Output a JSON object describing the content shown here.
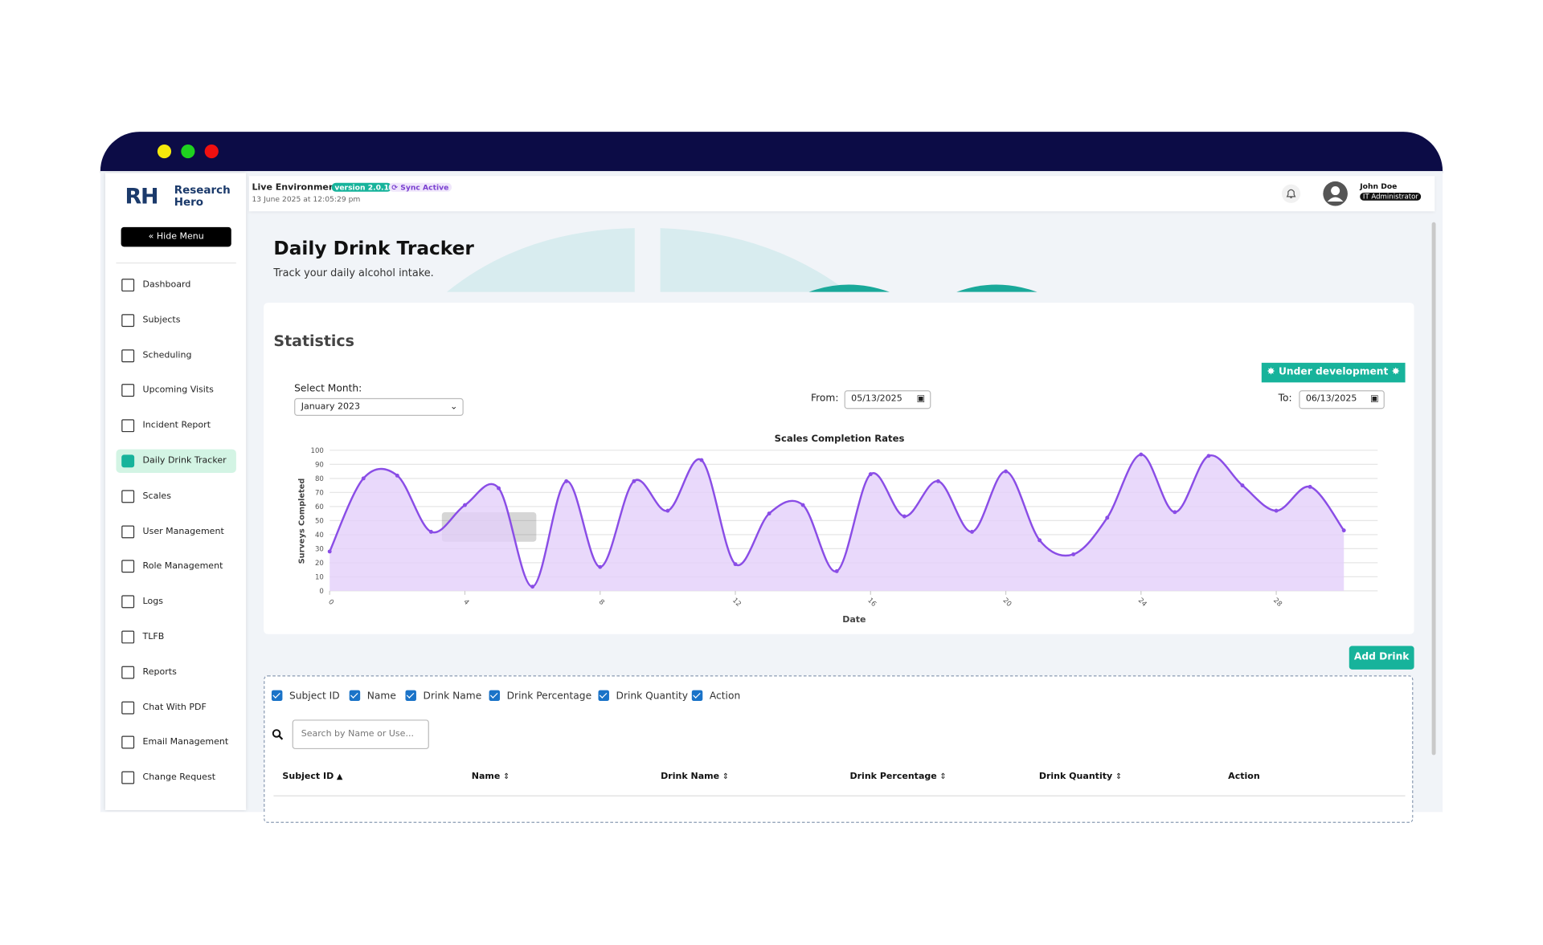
{
  "sidebar": {
    "logo_mark": "RH",
    "logo_lines": [
      "Research",
      "Hero"
    ],
    "hide_menu": "Hide Menu",
    "items": [
      "Dashboard",
      "Subjects",
      "Scheduling",
      "Upcoming Visits",
      "Incident Report",
      "Daily Drink Tracker",
      "Scales",
      "User Management",
      "Role Management",
      "Logs",
      "TLFB",
      "Reports",
      "Chat With PDF",
      "Email Management",
      "Change Request"
    ],
    "active_index": 5
  },
  "header": {
    "environment": "Live Environment",
    "version": "version 2.0.1",
    "sync": "Sync Active",
    "timestamp": "13 June 2025 at 12:05:29 pm",
    "user_name": "John Doe",
    "user_role": "IT Administrator"
  },
  "page": {
    "title": "Daily Drink Tracker",
    "subtitle": "Track your daily alcohol intake."
  },
  "statistics": {
    "title": "Statistics",
    "badge": "Under development",
    "select_label": "Select Month:",
    "select_value": "January 2023",
    "from_label": "From:",
    "from_value": "05/13/2025",
    "to_label": "To:",
    "to_value": "06/13/2025"
  },
  "chart_data": {
    "type": "line",
    "title": "Scales Completion Rates",
    "x_label": "Date",
    "y_label": "Surveys Completed",
    "x": [
      0,
      1,
      2,
      3,
      4,
      5,
      6,
      7,
      8,
      9,
      10,
      11,
      12,
      13,
      14,
      15,
      16,
      17,
      18,
      19,
      20,
      21,
      22,
      23,
      24,
      25,
      26,
      27,
      28,
      29,
      30
    ],
    "series": [
      {
        "name": "Surveys Completed",
        "color": "#8a4de6",
        "fill": "#e3d0fa",
        "values": [
          28,
          80,
          82,
          42,
          61,
          73,
          3,
          78,
          17,
          78,
          57,
          93,
          19,
          55,
          61,
          14,
          83,
          53,
          78,
          42,
          85,
          36,
          26,
          52,
          97,
          56,
          96,
          75,
          57,
          74,
          43
        ]
      }
    ],
    "xlim": [
      0,
      31
    ],
    "xticks": [
      0,
      4,
      8,
      12,
      16,
      20,
      24,
      28
    ],
    "ylim": [
      0,
      100
    ],
    "yticks": [
      0,
      10,
      20,
      30,
      40,
      50,
      60,
      70,
      80,
      90,
      100
    ],
    "grid": true
  },
  "table": {
    "add_button": "Add Drink",
    "columns": [
      "Subject ID",
      "Name",
      "Drink Name",
      "Drink Percentage",
      "Drink Quantity",
      "Action"
    ],
    "search_placeholder": "Search by Name or Use...",
    "headers": [
      "Subject ID",
      "Name",
      "Drink Name",
      "Drink Percentage",
      "Drink Quantity",
      "Action"
    ]
  }
}
